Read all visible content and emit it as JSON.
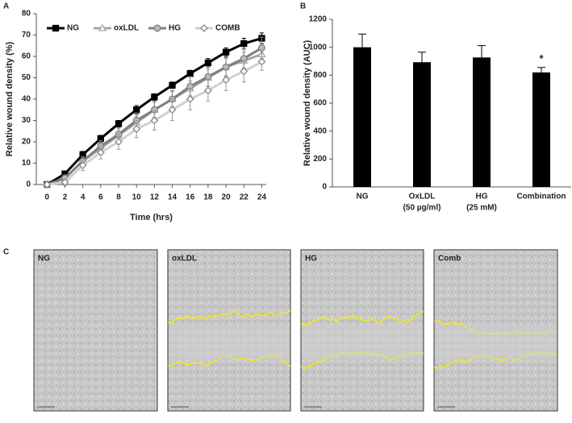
{
  "panel_labels": [
    "A",
    "B",
    "C"
  ],
  "chart_data": [
    {
      "type": "line",
      "xlabel": "Time (hrs)",
      "ylabel": "Relative wound density (%)",
      "x": [
        0,
        2,
        4,
        6,
        8,
        10,
        12,
        14,
        16,
        18,
        20,
        22,
        24
      ],
      "xlim": [
        -1.2,
        24.5
      ],
      "xticks": [
        0,
        2,
        4,
        6,
        8,
        10,
        12,
        14,
        16,
        18,
        20,
        22,
        24
      ],
      "ylim": [
        0,
        80
      ],
      "yticks": [
        0,
        10,
        20,
        30,
        40,
        50,
        60,
        70,
        80
      ],
      "series": [
        {
          "name": "NG",
          "color": "#000000",
          "marker": "square",
          "values": [
            0,
            5,
            14,
            21.5,
            28.5,
            35,
            41,
            46.5,
            52,
            57,
            62,
            66,
            68.5
          ],
          "errors": [
            0,
            1,
            1.5,
            1.5,
            1.5,
            2,
            1.5,
            1.5,
            1.5,
            2,
            2,
            2.5,
            2.5
          ]
        },
        {
          "name": "oxLDL",
          "color": "#a6a6a6",
          "marker": "triangle",
          "values": [
            0,
            3,
            11,
            17,
            23,
            29,
            35,
            40,
            45,
            50,
            55,
            58,
            61
          ],
          "errors": [
            0,
            1.5,
            2,
            2.5,
            3,
            3,
            3.5,
            3.5,
            3.5,
            4,
            4,
            4,
            4
          ]
        },
        {
          "name": "HG",
          "color": "#7f7f7f",
          "marker": "circle",
          "values": [
            0,
            3,
            11,
            18,
            23.5,
            30,
            35,
            40,
            46,
            50.5,
            55,
            59,
            64
          ],
          "errors": [
            0,
            1.5,
            2,
            2.5,
            3,
            3.5,
            4,
            4,
            4.5,
            4.5,
            4.5,
            4.5,
            5
          ]
        },
        {
          "name": "COMB",
          "color": "#d0d0d0",
          "marker": "diamond",
          "values": [
            0,
            1,
            9,
            15,
            20,
            26,
            30,
            35,
            40,
            44,
            49,
            53,
            57.5
          ],
          "errors": [
            0,
            1.5,
            2.5,
            3,
            3.5,
            4,
            4.5,
            5,
            5,
            5,
            5,
            5,
            4
          ]
        }
      ]
    },
    {
      "type": "bar",
      "ylabel": "Relative wound density (AUC)",
      "categories": [
        "NG",
        "OxLDL",
        "HG",
        "Combination"
      ],
      "category_sublabels": [
        null,
        "(50 µg/ml)",
        "(25 mM)",
        null
      ],
      "values": [
        1000,
        893,
        927,
        820
      ],
      "errors": [
        95,
        72,
        85,
        35
      ],
      "color": "#000000",
      "ylim": [
        0,
        1200
      ],
      "yticks": [
        0,
        200,
        400,
        600,
        800,
        1000,
        1200
      ],
      "annotations": [
        null,
        null,
        null,
        "*"
      ]
    }
  ],
  "image_labels": [
    "NG",
    "oxLDL",
    "HG",
    "Comb"
  ]
}
